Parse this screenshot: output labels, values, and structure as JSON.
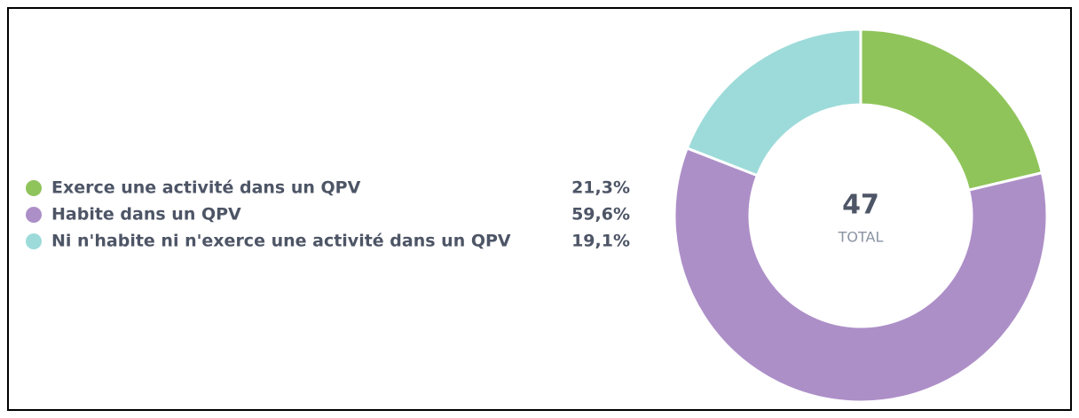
{
  "chart_data": {
    "type": "donut",
    "categories": [
      "Exerce une activité dans un QPV",
      "Habite dans un QPV",
      "Ni n'habite ni n'exerce une activité dans un QPV"
    ],
    "values": [
      21.3,
      59.6,
      19.1
    ],
    "value_labels": [
      "21,3%",
      "59,6%",
      "19,1%"
    ],
    "colors": [
      "#8fc45a",
      "#ad8fc8",
      "#9ddbda"
    ],
    "total": 47,
    "total_label": "TOTAL"
  }
}
